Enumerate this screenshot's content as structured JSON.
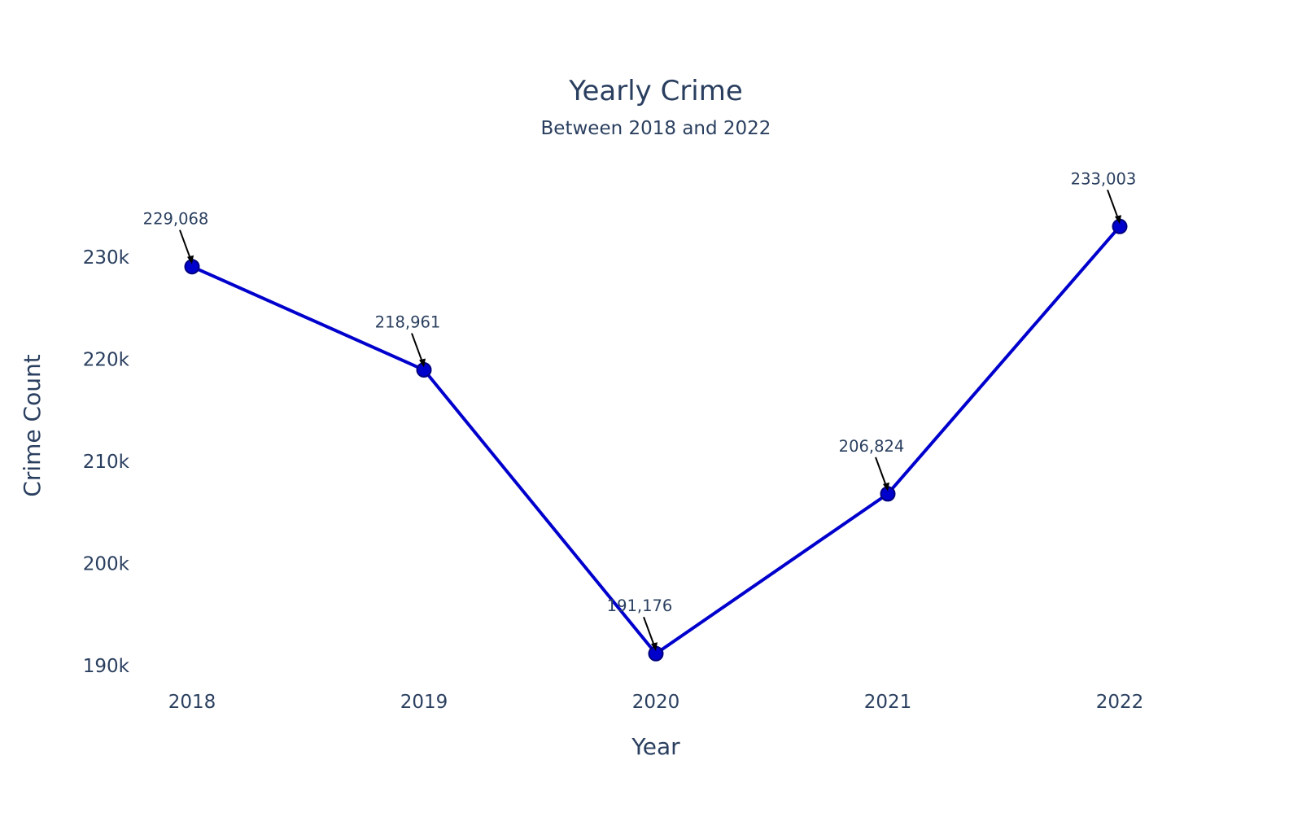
{
  "chart_data": {
    "type": "line",
    "title": "Yearly Crime",
    "subtitle": "Between 2018 and 2022",
    "xlabel": "Year",
    "ylabel": "Crime Count",
    "categories": [
      "2018",
      "2019",
      "2020",
      "2021",
      "2022"
    ],
    "series": [
      {
        "values": [
          229068,
          218961,
          191176,
          206824,
          233003
        ],
        "color": "#0000cd",
        "marker_color": "#0000cd",
        "marker_outline": "#000080"
      }
    ],
    "data_labels": [
      "229,068",
      "218,961",
      "191,176",
      "206,824",
      "233,003"
    ],
    "y_ticks": [
      190000,
      200000,
      210000,
      220000,
      230000
    ],
    "y_tick_labels": [
      "190k",
      "200k",
      "210k",
      "220k",
      "230k"
    ],
    "ylim": [
      188000,
      240000
    ],
    "grid": false,
    "legend": "none",
    "annotation_arrow_color": "#000000"
  }
}
